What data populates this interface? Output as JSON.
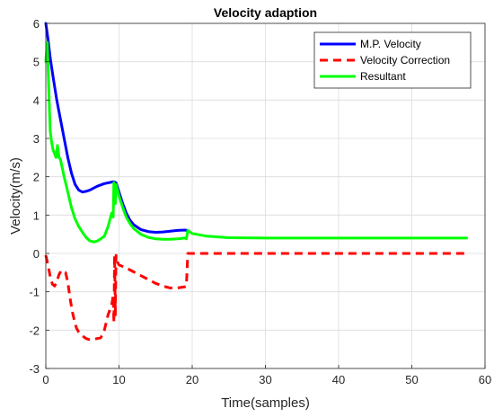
{
  "chart_data": {
    "type": "line",
    "title": "Velocity adaption",
    "xlabel": "Time(samples)",
    "ylabel": "Velocity(m/s)",
    "xlim": [
      0,
      60
    ],
    "ylim": [
      -3,
      6
    ],
    "xticks": [
      0,
      10,
      20,
      30,
      40,
      50,
      60
    ],
    "yticks": [
      -3,
      -2,
      -1,
      0,
      1,
      2,
      3,
      4,
      5,
      6
    ],
    "xtick_labels": [
      "0",
      "10",
      "20",
      "30",
      "40",
      "50",
      "60"
    ],
    "ytick_labels": [
      "-3",
      "-2",
      "-1",
      "0",
      "1",
      "2",
      "3",
      "4",
      "5",
      "6"
    ],
    "grid": true,
    "legend_position": "top-right",
    "series": [
      {
        "name": "M.P. Velocity",
        "color": "#0000ff",
        "style": "solid",
        "x": [
          0,
          0.3,
          0.6,
          1.0,
          1.5,
          2.0,
          2.5,
          3.0,
          3.5,
          4.0,
          4.5,
          5.0,
          5.5,
          6.0,
          7.0,
          8.0,
          9.0,
          9.3,
          9.6,
          10.0,
          10.5,
          11.0,
          11.5,
          12.0,
          13.0,
          14.0,
          15.0,
          16.0,
          17.0,
          18.0,
          19.0,
          19.3
        ],
        "y": [
          6.0,
          5.6,
          5.1,
          4.6,
          4.0,
          3.5,
          3.0,
          2.5,
          2.1,
          1.8,
          1.65,
          1.6,
          1.62,
          1.65,
          1.75,
          1.82,
          1.86,
          1.87,
          1.84,
          1.6,
          1.3,
          1.05,
          0.87,
          0.75,
          0.62,
          0.57,
          0.55,
          0.56,
          0.58,
          0.6,
          0.61,
          0.6
        ]
      },
      {
        "name": "Velocity Correction",
        "color": "#ff0000",
        "style": "dashed",
        "x": [
          0,
          0.3,
          0.6,
          0.9,
          1.2,
          1.5,
          1.8,
          2.1,
          2.4,
          2.7,
          3.0,
          3.3,
          3.6,
          3.9,
          4.2,
          4.5,
          5.0,
          5.5,
          6.0,
          6.5,
          7.0,
          7.5,
          8.0,
          8.5,
          9.0,
          9.2,
          9.3,
          9.4,
          9.5,
          9.6,
          9.7,
          10.0,
          11.0,
          12.0,
          13.0,
          14.0,
          15.0,
          16.0,
          17.0,
          18.0,
          19.0,
          19.2,
          19.4,
          20,
          30,
          40,
          50,
          57.5
        ],
        "y": [
          -0.05,
          -0.3,
          -0.6,
          -0.8,
          -0.85,
          -0.75,
          -0.55,
          -0.45,
          -0.5,
          -0.5,
          -0.75,
          -1.15,
          -1.5,
          -1.75,
          -1.95,
          -2.05,
          -2.15,
          -2.22,
          -2.25,
          -2.24,
          -2.22,
          -2.2,
          -2.0,
          -1.6,
          -1.35,
          -1.1,
          -1.8,
          -0.05,
          -1.6,
          -0.05,
          -0.2,
          -0.3,
          -0.38,
          -0.48,
          -0.58,
          -0.68,
          -0.78,
          -0.85,
          -0.9,
          -0.9,
          -0.87,
          -0.85,
          0.0,
          0.0,
          0.0,
          0.0,
          0.0,
          0.0
        ]
      },
      {
        "name": "Resultant",
        "color": "#00ff00",
        "style": "solid",
        "x": [
          0,
          0.2,
          0.4,
          0.6,
          0.8,
          1.0,
          1.2,
          1.4,
          1.6,
          1.8,
          2.0,
          2.5,
          3.0,
          3.5,
          4.0,
          4.5,
          5.0,
          5.5,
          6.0,
          6.5,
          7.0,
          7.5,
          8.0,
          8.5,
          9.0,
          9.2,
          9.3,
          9.5,
          9.6,
          10.0,
          10.5,
          11.0,
          11.5,
          12.0,
          13.0,
          14.0,
          15.0,
          16.0,
          17.0,
          18.0,
          19.0,
          19.2,
          19.4,
          20.0,
          22.0,
          25.0,
          30.0,
          40.0,
          50.0,
          57.5
        ],
        "y": [
          5.0,
          5.5,
          4.3,
          3.2,
          2.9,
          2.7,
          2.6,
          2.5,
          2.82,
          2.5,
          2.45,
          2.0,
          1.6,
          1.2,
          0.9,
          0.7,
          0.55,
          0.42,
          0.33,
          0.3,
          0.32,
          0.38,
          0.45,
          0.7,
          1.05,
          0.95,
          1.85,
          1.3,
          1.8,
          1.5,
          1.2,
          0.95,
          0.78,
          0.65,
          0.5,
          0.42,
          0.38,
          0.37,
          0.37,
          0.38,
          0.4,
          0.38,
          0.6,
          0.52,
          0.45,
          0.41,
          0.4,
          0.4,
          0.4,
          0.4
        ]
      }
    ]
  }
}
